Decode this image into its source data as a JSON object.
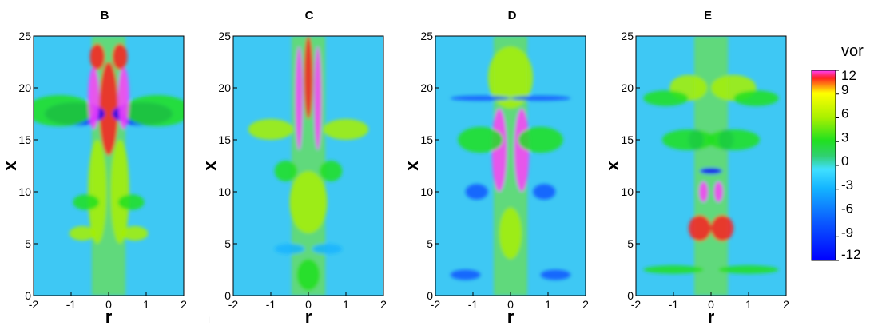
{
  "chart_data": {
    "type": "heatmap",
    "colorbar": {
      "title": "vor",
      "ticks": [
        12,
        9,
        6,
        3,
        0,
        -3,
        -6,
        -9,
        -12
      ],
      "range": [
        -12,
        12
      ],
      "colors": [
        "#0000ff",
        "#0a58ff",
        "#14b4ff",
        "#40e0ff",
        "#30d070",
        "#20e020",
        "#a8f000",
        "#ffff00",
        "#ff2020",
        "#ff40ff"
      ]
    },
    "x_axis": {
      "label": "r",
      "range": [
        -2,
        2
      ],
      "ticks": [
        -2,
        -1,
        0,
        1,
        2
      ]
    },
    "y_axis": {
      "label": "x",
      "range": [
        0,
        25
      ],
      "ticks": [
        0,
        5,
        10,
        15,
        20,
        25
      ]
    },
    "background_color": "#3ec8f4",
    "panels": [
      {
        "title": "B"
      },
      {
        "title": "C"
      },
      {
        "title": "D"
      },
      {
        "title": "E"
      }
    ]
  },
  "stray_mark": "I"
}
